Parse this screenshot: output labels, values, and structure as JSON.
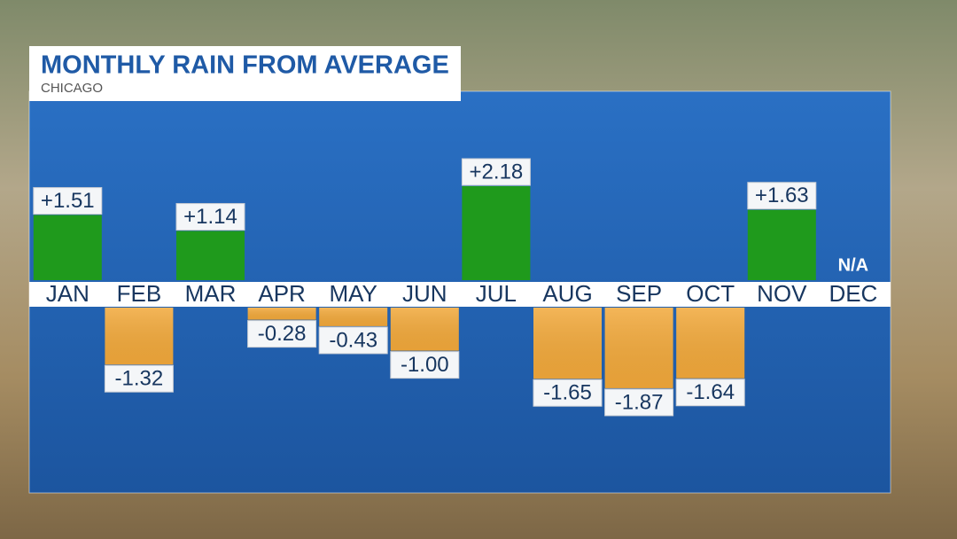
{
  "chart_data": {
    "type": "bar",
    "title": "MONTHLY RAIN FROM AVERAGE",
    "subtitle": "CHICAGO",
    "categories": [
      "JAN",
      "FEB",
      "MAR",
      "APR",
      "MAY",
      "JUN",
      "JUL",
      "AUG",
      "SEP",
      "OCT",
      "NOV",
      "DEC"
    ],
    "values": [
      1.51,
      -1.32,
      1.14,
      -0.28,
      -0.43,
      -1.0,
      2.18,
      -1.65,
      -1.87,
      -1.64,
      1.63,
      null
    ],
    "value_labels": [
      "+1.51",
      "-1.32",
      "+1.14",
      "-0.28",
      "-0.43",
      "-1.00",
      "+2.18",
      "-1.65",
      "-1.87",
      "-1.64",
      "+1.63",
      "N/A"
    ],
    "positive_color": "#1f9a1c",
    "negative_color": "#f2a93b"
  }
}
